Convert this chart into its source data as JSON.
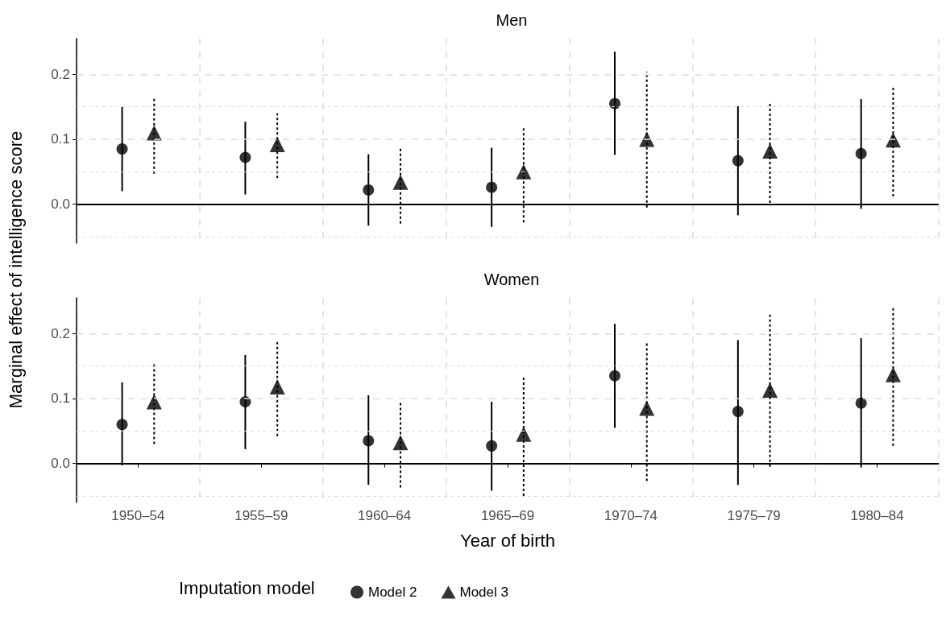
{
  "chart_data": [
    {
      "type": "scatter",
      "title": "Men",
      "ylabel": "Marginal effect of intelligence score",
      "ylim": [
        -0.06,
        0.255
      ],
      "yticks": [
        {
          "value": -0.05,
          "label": null
        },
        {
          "value": 0,
          "label": "0.0"
        },
        {
          "value": 0.05,
          "label": null
        },
        {
          "value": 0.1,
          "label": "0.1"
        },
        {
          "value": 0.15,
          "label": null
        },
        {
          "value": 0.2,
          "label": "0.2"
        }
      ],
      "grid": true,
      "tick_labels": "y",
      "ref_lines": [
        {
          "axis": "y",
          "value": 0,
          "color": "#000000",
          "line_style": "solid"
        }
      ],
      "series": [
        {
          "color": "#000000",
          "marker": "circle",
          "line_style": "solid",
          "values": [
            0.085,
            0.072,
            0.022,
            0.026,
            0.155,
            0.067,
            0.078
          ],
          "errors": [
            [
              0.02,
              0.15
            ],
            [
              0.015,
              0.127
            ],
            [
              -0.033,
              0.077
            ],
            [
              -0.035,
              0.087
            ],
            [
              0.076,
              0.235
            ],
            [
              -0.017,
              0.151
            ],
            [
              -0.007,
              0.162
            ]
          ]
        },
        {
          "color": "#000000",
          "marker": "triangle",
          "line_style": "dashed",
          "values": [
            0.11,
            0.092,
            0.034,
            0.05,
            0.1,
            0.082,
            0.099
          ],
          "errors": [
            [
              0.047,
              0.165
            ],
            [
              0.04,
              0.14
            ],
            [
              -0.03,
              0.087
            ],
            [
              -0.028,
              0.117
            ],
            [
              -0.005,
              0.204
            ],
            [
              0.002,
              0.157
            ],
            [
              0.012,
              0.18
            ]
          ]
        }
      ]
    },
    {
      "type": "scatter",
      "title": "Women",
      "xlabel": "Year of birth",
      "legend_title": "Imputation model",
      "legend": "bottom",
      "categories": [
        "1950–54",
        "1955–59",
        "1960–64",
        "1965–69",
        "1970–74",
        "1975–79",
        "1980–84"
      ],
      "ylim": [
        -0.06,
        0.255
      ],
      "yticks": [
        {
          "value": -0.05,
          "label": null
        },
        {
          "value": 0,
          "label": "0.0"
        },
        {
          "value": 0.05,
          "label": null
        },
        {
          "value": 0.1,
          "label": "0.1"
        },
        {
          "value": 0.15,
          "label": null
        },
        {
          "value": 0.2,
          "label": "0.2"
        }
      ],
      "grid": true,
      "ref_lines": [
        {
          "axis": "y",
          "value": 0,
          "color": "#000000",
          "line_style": "solid"
        }
      ],
      "series": [
        {
          "name": "Model 2",
          "color": "#000000",
          "marker": "circle",
          "line_style": "solid",
          "values": [
            0.06,
            0.095,
            0.035,
            0.027,
            0.135,
            0.08,
            0.093
          ],
          "errors": [
            [
              -0.003,
              0.125
            ],
            [
              0.022,
              0.167
            ],
            [
              -0.033,
              0.105
            ],
            [
              -0.042,
              0.095
            ],
            [
              0.055,
              0.215
            ],
            [
              -0.033,
              0.19
            ],
            [
              -0.006,
              0.193
            ]
          ]
        },
        {
          "name": "Model 3",
          "color": "#000000",
          "marker": "triangle",
          "line_style": "dashed",
          "values": [
            0.095,
            0.118,
            0.032,
            0.045,
            0.085,
            0.113,
            0.137
          ],
          "errors": [
            [
              0.03,
              0.155
            ],
            [
              0.042,
              0.187
            ],
            [
              -0.037,
              0.095
            ],
            [
              -0.05,
              0.135
            ],
            [
              -0.027,
              0.186
            ],
            [
              -0.005,
              0.23
            ],
            [
              0.027,
              0.24
            ]
          ]
        }
      ]
    }
  ]
}
